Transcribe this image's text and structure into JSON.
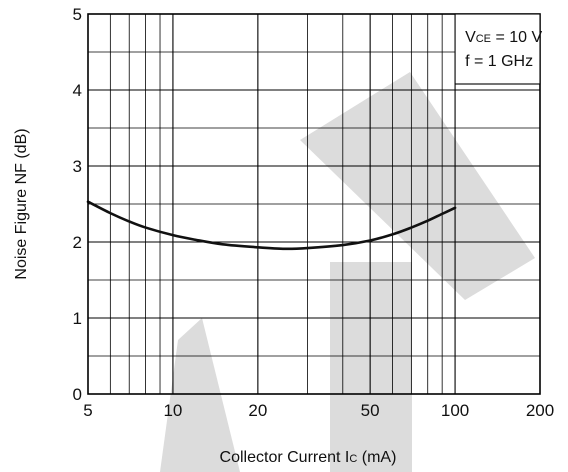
{
  "chart_data": {
    "type": "line",
    "xlabel": {
      "main": "Collector Current  I",
      "sub": "C",
      "unit": " (mA)"
    },
    "ylabel": "Noise Figure  NF (dB)",
    "x_scale": "log",
    "xlim": [
      5,
      200
    ],
    "ylim": [
      0,
      5
    ],
    "x_ticks": [
      5,
      10,
      20,
      50,
      100,
      200
    ],
    "x_tick_labels": [
      "5",
      "10",
      "20",
      "50",
      "100",
      "200"
    ],
    "y_ticks": [
      0,
      1,
      2,
      3,
      4,
      5
    ],
    "y_tick_labels": [
      "0",
      "1",
      "2",
      "3",
      "4",
      "5"
    ],
    "grid": true,
    "conditions": [
      {
        "main": "V",
        "sub": "CE",
        "rest": " = 10 V"
      },
      {
        "main": "f = 1 GHz",
        "sub": "",
        "rest": ""
      }
    ],
    "series": [
      {
        "x": [
          5,
          6,
          7,
          8,
          10,
          12,
          15,
          20,
          25,
          30,
          40,
          50,
          60,
          70,
          80,
          90,
          100
        ],
        "y": [
          2.53,
          2.38,
          2.27,
          2.19,
          2.09,
          2.03,
          1.97,
          1.93,
          1.91,
          1.92,
          1.96,
          2.02,
          2.1,
          2.19,
          2.28,
          2.37,
          2.45
        ]
      }
    ]
  }
}
